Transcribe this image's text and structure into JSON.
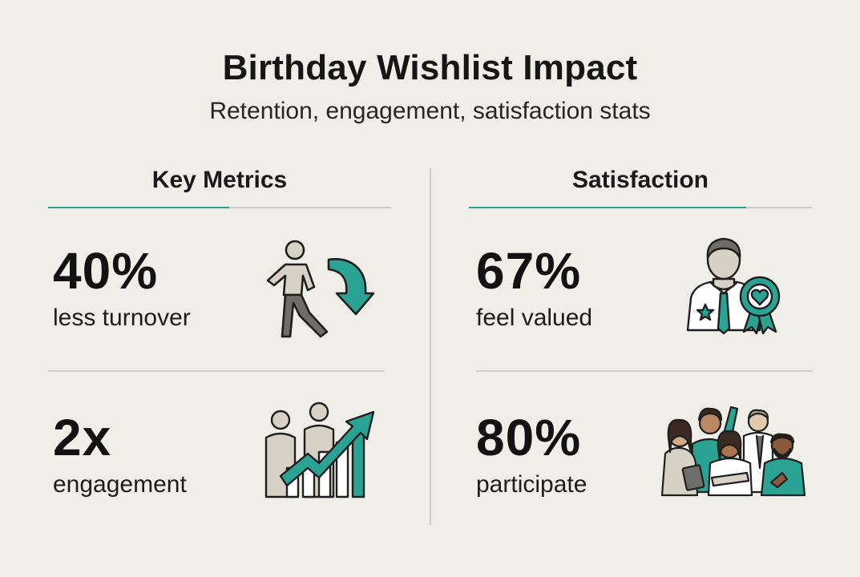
{
  "header": {
    "title": "Birthday Wishlist Impact",
    "subtitle": "Retention, engagement, satisfaction stats"
  },
  "columns": [
    {
      "heading": "Key Metrics",
      "metrics": [
        {
          "value": "40%",
          "label": "less turnover",
          "icon": "walking-person-down-arrow-icon"
        },
        {
          "value": "2x",
          "label": "engagement",
          "icon": "people-growth-chart-icon"
        }
      ]
    },
    {
      "heading": "Satisfaction",
      "metrics": [
        {
          "value": "67%",
          "label": "feel valued",
          "icon": "employee-award-badge-icon"
        },
        {
          "value": "80%",
          "label": "participate",
          "icon": "group-of-people-icon"
        }
      ]
    }
  ],
  "colors": {
    "background": "#f0eee9",
    "accent": "#2aa394",
    "figure_fill": "#d8d2c6",
    "text": "#161616"
  }
}
